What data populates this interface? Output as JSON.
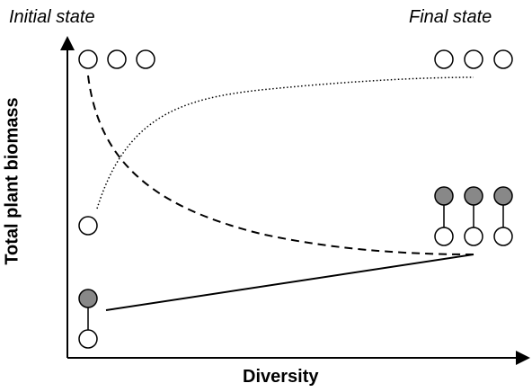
{
  "labels": {
    "initial_state": "Initial state",
    "final_state": "Final state",
    "x_axis": "Diversity",
    "y_axis": "Total plant biomass"
  },
  "colors": {
    "axis": "#000000",
    "circle_open_fill": "#ffffff",
    "circle_filled_fill": "#888888",
    "stroke": "#000000"
  }
}
